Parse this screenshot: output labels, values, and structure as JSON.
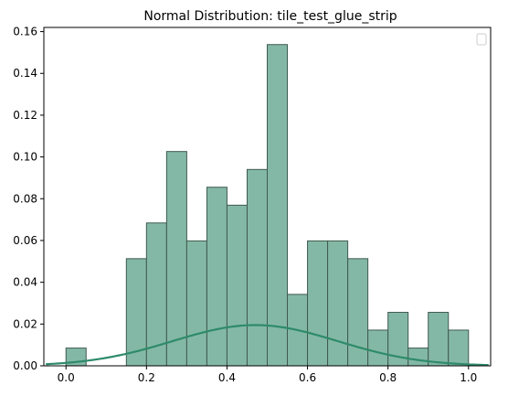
{
  "chart_data": {
    "type": "histogram",
    "title": "Normal Distribution: tile_test_glue_strip",
    "xlabel": "",
    "ylabel": "",
    "xlim": [
      -0.055,
      1.055
    ],
    "ylim": [
      0,
      0.162
    ],
    "x_ticks": [
      "0.0",
      "0.2",
      "0.4",
      "0.6",
      "0.8",
      "1.0"
    ],
    "x_tick_values": [
      0.0,
      0.2,
      0.4,
      0.6,
      0.8,
      1.0
    ],
    "y_ticks": [
      "0.00",
      "0.02",
      "0.04",
      "0.06",
      "0.08",
      "0.10",
      "0.12",
      "0.14",
      "0.16"
    ],
    "y_tick_values": [
      0.0,
      0.02,
      0.04,
      0.06,
      0.08,
      0.1,
      0.12,
      0.14,
      0.16
    ],
    "bin_width": 0.05,
    "bins": [
      {
        "x0": 0.0,
        "x1": 0.05,
        "value": 0.0085
      },
      {
        "x0": 0.05,
        "x1": 0.1,
        "value": 0.0
      },
      {
        "x0": 0.1,
        "x1": 0.15,
        "value": 0.0
      },
      {
        "x0": 0.15,
        "x1": 0.2,
        "value": 0.0513
      },
      {
        "x0": 0.2,
        "x1": 0.25,
        "value": 0.0684
      },
      {
        "x0": 0.25,
        "x1": 0.3,
        "value": 0.1026
      },
      {
        "x0": 0.3,
        "x1": 0.35,
        "value": 0.0598
      },
      {
        "x0": 0.35,
        "x1": 0.4,
        "value": 0.0855
      },
      {
        "x0": 0.4,
        "x1": 0.45,
        "value": 0.0769
      },
      {
        "x0": 0.45,
        "x1": 0.5,
        "value": 0.094
      },
      {
        "x0": 0.5,
        "x1": 0.55,
        "value": 0.1538
      },
      {
        "x0": 0.55,
        "x1": 0.6,
        "value": 0.0342
      },
      {
        "x0": 0.6,
        "x1": 0.65,
        "value": 0.0598
      },
      {
        "x0": 0.65,
        "x1": 0.7,
        "value": 0.0598
      },
      {
        "x0": 0.7,
        "x1": 0.75,
        "value": 0.0513
      },
      {
        "x0": 0.75,
        "x1": 0.8,
        "value": 0.0171
      },
      {
        "x0": 0.8,
        "x1": 0.85,
        "value": 0.0256
      },
      {
        "x0": 0.85,
        "x1": 0.9,
        "value": 0.0085
      },
      {
        "x0": 0.9,
        "x1": 0.95,
        "value": 0.0256
      },
      {
        "x0": 0.95,
        "x1": 1.0,
        "value": 0.0171
      }
    ],
    "normal_curve": {
      "mean": 0.47,
      "std": 0.205,
      "peak": 0.0195,
      "x_range": [
        -0.05,
        1.05
      ]
    },
    "legend": {
      "placement": "upper right",
      "entries": []
    },
    "grid": false,
    "colors": {
      "bar_fill": "#84b8a6",
      "bar_edge": "#3f5a50",
      "curve": "#2e8b6a",
      "axis": "#000000"
    }
  }
}
